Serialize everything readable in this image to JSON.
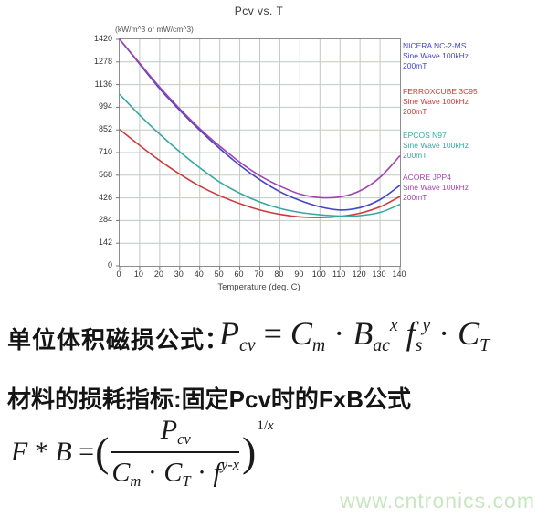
{
  "chart_data": {
    "type": "line",
    "title": "Pcv vs. T",
    "xlabel": "Temperature (deg. C)",
    "ylabel": "(kW/m^3 or mW/cm^3)",
    "xlim": [
      0,
      140
    ],
    "ylim": [
      0,
      1420
    ],
    "grid": true,
    "legend_position": "right",
    "x_ticks": [
      0,
      10,
      20,
      30,
      40,
      50,
      60,
      70,
      80,
      90,
      100,
      110,
      120,
      130,
      140
    ],
    "y_ticks": [
      0,
      142,
      284,
      426,
      568,
      710,
      852,
      994,
      1136,
      1278,
      1420
    ],
    "x": [
      0,
      10,
      20,
      30,
      40,
      50,
      60,
      70,
      80,
      90,
      100,
      110,
      120,
      130,
      140
    ],
    "series": [
      {
        "name": "NICERA NC-2-MS",
        "wave": "Sine Wave 100kHz",
        "flux": "200mT",
        "color": "#4545c8",
        "values": [
          1420,
          1265,
          1110,
          975,
          850,
          735,
          630,
          540,
          465,
          410,
          370,
          350,
          365,
          415,
          505
        ]
      },
      {
        "name": "FERROXCUBE 3C95",
        "wave": "Sine Wave 100kHz",
        "flux": "200mT",
        "color": "#cc3b3b",
        "values": [
          855,
          755,
          660,
          575,
          500,
          440,
          390,
          350,
          323,
          307,
          303,
          310,
          330,
          370,
          435
        ]
      },
      {
        "name": "EPCOS N97",
        "wave": "Sine Wave 100kHz",
        "flux": "200mT",
        "color": "#35a8a4",
        "values": [
          1075,
          945,
          825,
          715,
          615,
          525,
          455,
          400,
          360,
          335,
          320,
          312,
          315,
          335,
          385
        ]
      },
      {
        "name": "ACORE JPP4",
        "wave": "Sine Wave 100kHz",
        "flux": "200mT",
        "color": "#a244ae",
        "values": [
          1420,
          1270,
          1120,
          985,
          860,
          750,
          650,
          565,
          500,
          450,
          428,
          432,
          470,
          555,
          690
        ]
      }
    ]
  },
  "chart": {
    "title": "Pcv vs. T",
    "y_unit": "(kW/m^3 or mW/cm^3)",
    "x_label": "Temperature (deg. C)"
  },
  "formulas": {
    "pcv": {
      "label": "单位体积磁损公式：",
      "tokens": [
        {
          "t": "P",
          "s": "i"
        },
        {
          "t": "cv",
          "s": "sub"
        },
        {
          "t": " = ",
          "s": "n"
        },
        {
          "t": "C",
          "s": "i"
        },
        {
          "t": "m",
          "s": "sub"
        },
        {
          "t": " · ",
          "s": "n"
        },
        {
          "t": "B",
          "s": "i"
        },
        {
          "t": "ac",
          "s": "sub"
        },
        {
          "t": "x",
          "s": "sup"
        },
        {
          "t": " ",
          "s": "n"
        },
        {
          "t": "f",
          "s": "i"
        },
        {
          "t": "s",
          "s": "sub"
        },
        {
          "t": "y",
          "s": "sup"
        },
        {
          "t": " · ",
          "s": "n"
        },
        {
          "t": "C",
          "s": "i"
        },
        {
          "t": "T",
          "s": "sub"
        }
      ]
    },
    "heading2": "材料的损耗指标:固定Pcv时的FxB公式",
    "fxb": {
      "lhs": [
        {
          "t": "F",
          "s": "i"
        },
        {
          "t": " * ",
          "s": "n"
        },
        {
          "t": "B",
          "s": "i"
        },
        {
          "t": " = ",
          "s": "n"
        }
      ],
      "open_paren": "(",
      "numerator": [
        {
          "t": "P",
          "s": "i"
        },
        {
          "t": "cv",
          "s": "sub"
        }
      ],
      "denominator": [
        {
          "t": "C",
          "s": "i"
        },
        {
          "t": "m",
          "s": "sub"
        },
        {
          "t": " · ",
          "s": "n"
        },
        {
          "t": "C",
          "s": "i"
        },
        {
          "t": "T",
          "s": "sub"
        },
        {
          "t": " · ",
          "s": "n"
        },
        {
          "t": "f",
          "s": "i"
        },
        {
          "t": "y-x",
          "s": "sup"
        }
      ],
      "close_paren": ")",
      "exponent": [
        {
          "t": "1/",
          "s": "n"
        },
        {
          "t": "x",
          "s": "i"
        }
      ]
    }
  },
  "watermark": "www.cntronics.com"
}
